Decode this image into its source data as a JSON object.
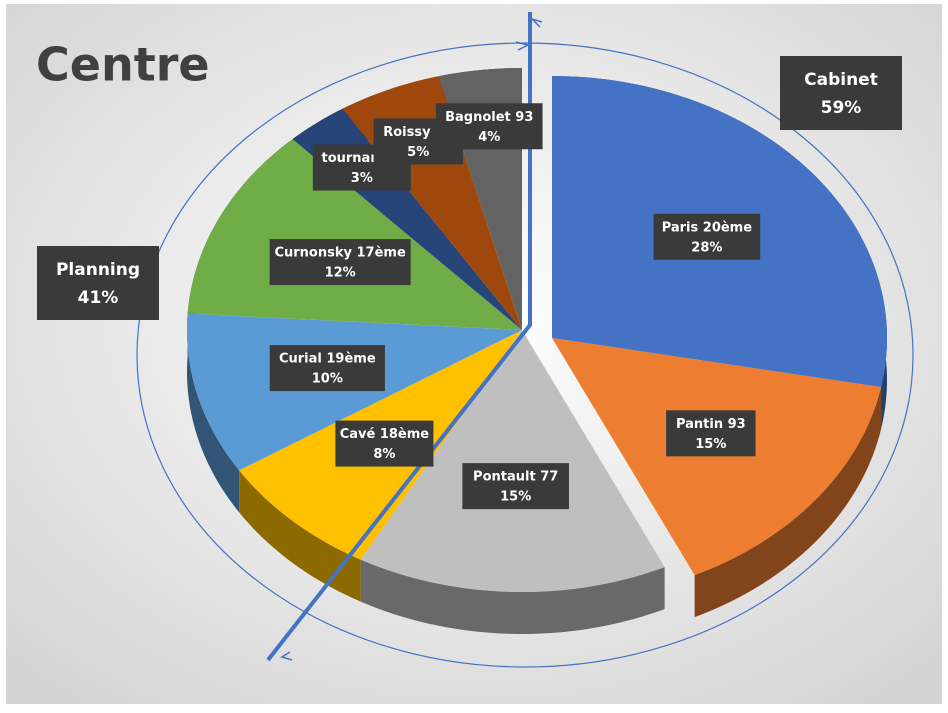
{
  "chart_data": {
    "type": "pie3d",
    "title": "Centre",
    "categories": [
      "Paris 20ème",
      "Pantin 93",
      "Pontault 77",
      "Cavé 18ème",
      "Curial 19ème",
      "Curnonsky 17ème",
      "tournan 77",
      "Roissy 77",
      "Bagnolet 93"
    ],
    "values": [
      28,
      15,
      15,
      8,
      10,
      12,
      3,
      5,
      4
    ],
    "value_labels": [
      "28%",
      "15%",
      "15%",
      "8%",
      "10%",
      "12%",
      "3%",
      "5%",
      "4%"
    ],
    "colors": [
      "#4472c4",
      "#ed7d31",
      "#bfbfbf",
      "#ffc000",
      "#5b9bd5",
      "#70ad47",
      "#264478",
      "#9e480e",
      "#636363"
    ],
    "annotations": [
      {
        "label": "Cabinet",
        "value_label": "59%"
      },
      {
        "label": "Planning",
        "value_label": "41%"
      }
    ]
  }
}
